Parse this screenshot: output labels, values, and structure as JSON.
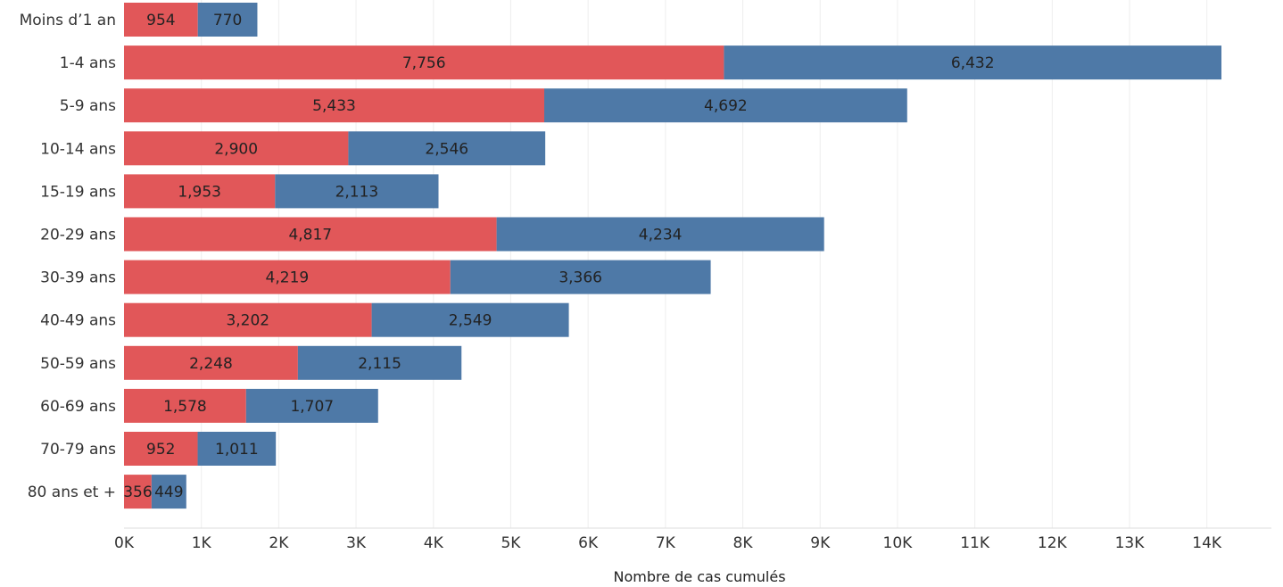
{
  "chart_data": {
    "type": "bar",
    "orientation": "horizontal",
    "stacked": true,
    "categories": [
      "Moins d’1 an",
      "1-4 ans",
      "5-9 ans",
      "10-14 ans",
      "15-19 ans",
      "20-29 ans",
      "30-39 ans",
      "40-49 ans",
      "50-59 ans",
      "60-69 ans",
      "70-79 ans",
      "80 ans et +"
    ],
    "series": [
      {
        "color": "#e15759",
        "values": [
          954,
          7756,
          5433,
          2900,
          1953,
          4817,
          4219,
          3202,
          2248,
          1578,
          952,
          356
        ]
      },
      {
        "color": "#4e79a7",
        "values": [
          770,
          6432,
          4692,
          2546,
          2113,
          4234,
          3366,
          2549,
          2115,
          1707,
          1011,
          449
        ]
      }
    ],
    "value_labels": [
      [
        "954",
        "7,756",
        "5,433",
        "2,900",
        "1,953",
        "4,817",
        "4,219",
        "3,202",
        "2,248",
        "1,578",
        "952",
        "356"
      ],
      [
        "770",
        "6,432",
        "4,692",
        "2,546",
        "2,113",
        "4,234",
        "3,366",
        "2,549",
        "2,115",
        "1,707",
        "1,011",
        "449"
      ]
    ],
    "xticks": [
      0,
      1000,
      2000,
      3000,
      4000,
      5000,
      6000,
      7000,
      8000,
      9000,
      10000,
      11000,
      12000,
      13000,
      14000
    ],
    "xtick_labels": [
      "0K",
      "1K",
      "2K",
      "3K",
      "4K",
      "5K",
      "6K",
      "7K",
      "8K",
      "9K",
      "10K",
      "11K",
      "12K",
      "13K",
      "14K"
    ],
    "xlim": [
      0,
      14800
    ],
    "xlabel": "Nombre de cas cumulés",
    "ylabel": "",
    "title": "",
    "grid": true,
    "legend": "none"
  }
}
